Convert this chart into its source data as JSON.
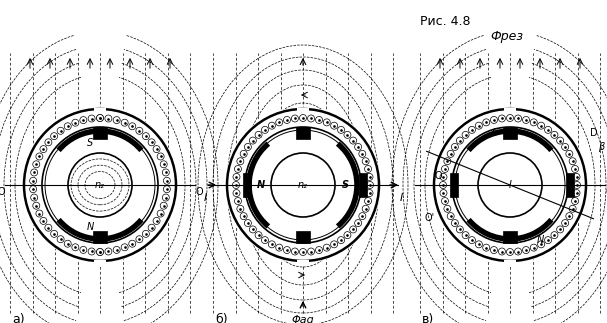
{
  "bg_color": "#ffffff",
  "title_a": "а)",
  "title_b": "б)",
  "title_v": "в)",
  "label_n2": "n₂",
  "label_phi": "Φaq",
  "label_frez": "Фрез",
  "label_ris": "Рис. 4.8"
}
